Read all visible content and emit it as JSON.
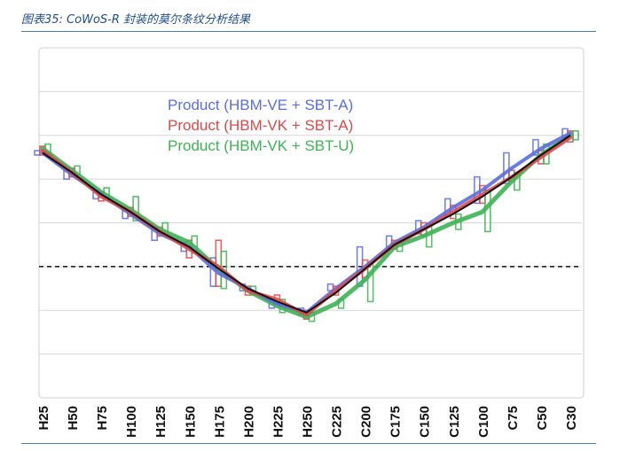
{
  "caption": "图表35: CoWoS-R 封装的莫尔条纹分析结果",
  "colors": {
    "caption": "#1f4e8c",
    "rule": "#4a7dc0",
    "hbm_ve_sbt_a": "#5a6ee0",
    "hbm_vk_sbt_a": "#e04848",
    "hbm_vk_sbt_u": "#3cb454",
    "trend": "#111111",
    "grid": "#d8d8d8"
  },
  "chart_data": {
    "type": "line",
    "title": "",
    "xlabel": "",
    "ylabel": "",
    "x": [
      "H25",
      "H50",
      "H75",
      "H100",
      "H125",
      "H150",
      "H175",
      "H200",
      "H225",
      "H250",
      "C225",
      "C200",
      "C175",
      "C150",
      "C125",
      "C100",
      "C75",
      "C50",
      "C30"
    ],
    "ylim": [
      0,
      8
    ],
    "grid": "horizontal",
    "reference_line": 3.0,
    "legend_position": "top-center",
    "series": [
      {
        "name": "Product (HBM-VE + SBT-A)",
        "color": "#5a6ee0",
        "values": [
          5.6,
          5.1,
          4.65,
          4.2,
          3.75,
          3.45,
          2.85,
          2.5,
          2.15,
          1.95,
          2.5,
          3.0,
          3.55,
          3.9,
          4.35,
          4.75,
          5.25,
          5.7,
          6.05
        ],
        "ranges": [
          [
            5.55,
            5.65
          ],
          [
            5.0,
            5.2
          ],
          [
            4.55,
            4.75
          ],
          [
            4.1,
            4.3
          ],
          [
            3.6,
            3.9
          ],
          [
            3.35,
            3.55
          ],
          [
            2.55,
            3.2
          ],
          [
            2.45,
            2.6
          ],
          [
            2.05,
            2.25
          ],
          [
            1.9,
            2.05
          ],
          [
            2.45,
            2.6
          ],
          [
            2.55,
            3.45
          ],
          [
            3.45,
            3.7
          ],
          [
            3.75,
            4.05
          ],
          [
            4.15,
            4.55
          ],
          [
            4.45,
            5.05
          ],
          [
            4.9,
            5.6
          ],
          [
            5.55,
            5.9
          ],
          [
            5.95,
            6.15
          ]
        ]
      },
      {
        "name": "Product (HBM-VK + SBT-A)",
        "color": "#e04848",
        "values": [
          5.65,
          5.15,
          4.6,
          4.25,
          3.8,
          3.4,
          3.0,
          2.45,
          2.25,
          1.9,
          2.45,
          2.95,
          3.5,
          3.85,
          4.25,
          4.65,
          5.05,
          5.5,
          5.95
        ],
        "ranges": [
          [
            5.55,
            5.75
          ],
          [
            5.05,
            5.25
          ],
          [
            4.5,
            4.7
          ],
          [
            4.15,
            4.35
          ],
          [
            3.7,
            3.9
          ],
          [
            3.2,
            3.6
          ],
          [
            2.55,
            3.6
          ],
          [
            2.35,
            2.55
          ],
          [
            2.15,
            2.35
          ],
          [
            1.8,
            2.0
          ],
          [
            2.35,
            2.55
          ],
          [
            2.75,
            3.15
          ],
          [
            3.4,
            3.6
          ],
          [
            3.7,
            4.0
          ],
          [
            4.1,
            4.4
          ],
          [
            4.45,
            4.85
          ],
          [
            4.95,
            5.2
          ],
          [
            5.35,
            5.65
          ],
          [
            5.85,
            6.1
          ]
        ]
      },
      {
        "name": "Product (HBM-VK + SBT-U)",
        "color": "#3cb454",
        "values": [
          5.7,
          5.2,
          4.7,
          4.3,
          3.85,
          3.55,
          2.95,
          2.45,
          2.1,
          1.85,
          2.15,
          2.7,
          3.45,
          3.7,
          4.0,
          4.25,
          4.95,
          5.55,
          6.0
        ],
        "ranges": [
          [
            5.6,
            5.8
          ],
          [
            5.1,
            5.3
          ],
          [
            4.6,
            4.8
          ],
          [
            4.05,
            4.6
          ],
          [
            3.7,
            4.0
          ],
          [
            3.35,
            3.7
          ],
          [
            2.5,
            3.35
          ],
          [
            2.35,
            2.55
          ],
          [
            1.95,
            2.25
          ],
          [
            1.75,
            1.95
          ],
          [
            2.05,
            2.25
          ],
          [
            2.2,
            3.05
          ],
          [
            3.35,
            3.6
          ],
          [
            3.45,
            3.95
          ],
          [
            3.85,
            4.2
          ],
          [
            3.8,
            4.75
          ],
          [
            4.75,
            5.15
          ],
          [
            5.35,
            5.8
          ],
          [
            5.9,
            6.1
          ]
        ]
      }
    ],
    "trend": [
      5.6,
      5.15,
      4.65,
      4.25,
      3.8,
      3.45,
      2.95,
      2.5,
      2.2,
      1.95,
      2.4,
      2.95,
      3.5,
      3.85,
      4.2,
      4.6,
      5.05,
      5.55,
      6.0
    ]
  }
}
